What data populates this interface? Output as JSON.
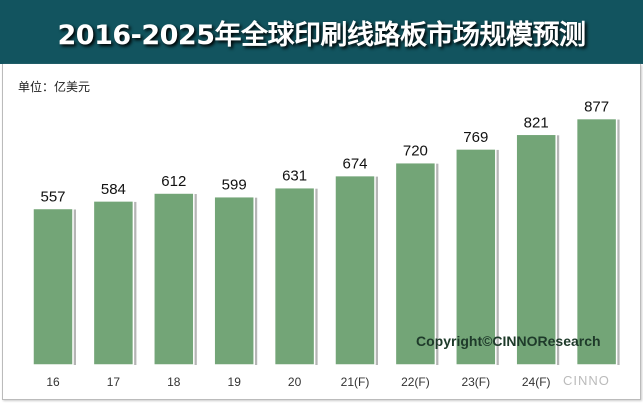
{
  "chart_data": {
    "type": "bar",
    "title": "2016-2025年全球印刷线路板市场规模预测",
    "unit_label": "单位：亿美元",
    "categories": [
      "16",
      "17",
      "18",
      "19",
      "20",
      "21(F)",
      "22(F)",
      "23(F)",
      "24(F)",
      ""
    ],
    "values": [
      557,
      584,
      612,
      599,
      631,
      674,
      720,
      769,
      821,
      877
    ],
    "ylim": [
      0,
      900
    ],
    "grid": false,
    "bar_color": "#73a577",
    "title_bg": "#12545f"
  },
  "copyright": "Copyright©CINNOResearch",
  "watermark": "CINNO"
}
